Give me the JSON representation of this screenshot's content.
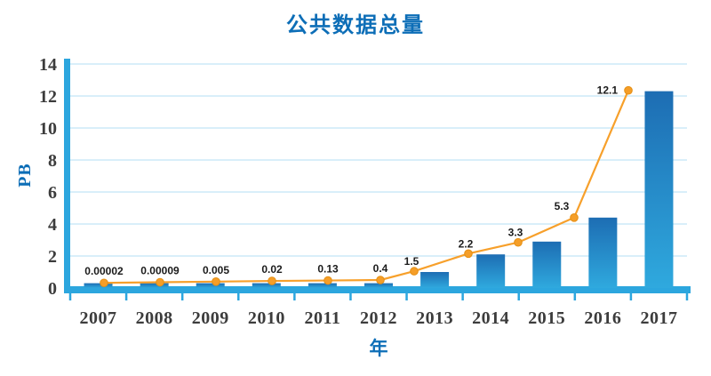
{
  "chart_data": {
    "type": "bar",
    "title": "公共数据总量",
    "xlabel": "年",
    "ylabel": "PB",
    "categories": [
      "2007",
      "2008",
      "2009",
      "2010",
      "2011",
      "2012",
      "2013",
      "2014",
      "2015",
      "2016",
      "2017"
    ],
    "series": [
      {
        "name": "bars",
        "type": "bar",
        "display_heights_pb": [
          0.3,
          0.3,
          0.3,
          0.3,
          0.3,
          0.3,
          1.0,
          2.1,
          2.9,
          4.4,
          12.3
        ]
      },
      {
        "name": "line",
        "type": "line",
        "values": [
          2e-05,
          9e-05,
          0.005,
          0.02,
          0.13,
          0.4,
          1.5,
          2.2,
          3.3,
          5.3,
          12.1
        ],
        "value_labels": [
          "0.00002",
          "0.00009",
          "0.005",
          "0.02",
          "0.13",
          "0.4",
          "1.5",
          "2.2",
          "3.3",
          "5.3",
          "12.1"
        ],
        "marker_display_pb": [
          0.32,
          0.36,
          0.4,
          0.44,
          0.47,
          0.5,
          1.05,
          2.15,
          2.85,
          4.4,
          12.35
        ]
      }
    ],
    "ylim": [
      0,
      14
    ],
    "yticks": [
      0,
      2,
      4,
      6,
      8,
      10,
      12,
      14
    ],
    "grid": true,
    "legend": "none",
    "colors": {
      "title": "#0D6EB7",
      "axis": "#2CA6DE",
      "grid": "#C2E5F7",
      "bar_top": "#1D6DB3",
      "bar_bottom": "#2FA9DE",
      "line": "#F7A02B",
      "marker": "#F59E28",
      "marker_edge": "#E58F13",
      "value_label": "#1B1B1B",
      "tick_label": "#3C3C3C"
    }
  }
}
